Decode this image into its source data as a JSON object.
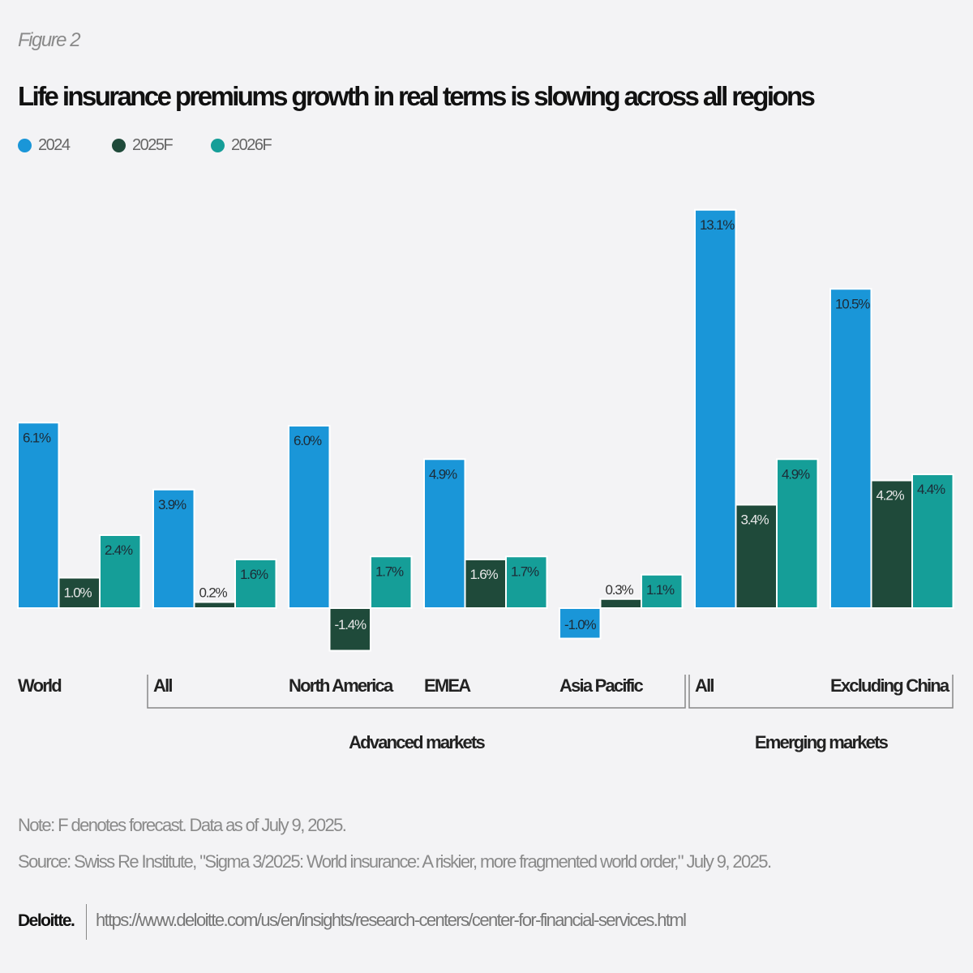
{
  "figure_label": "Figure 2",
  "chart_data": {
    "type": "bar",
    "title": "Life insurance premiums growth in real terms is slowing across all regions",
    "categories": [
      "World",
      "All",
      "North America",
      "EMEA",
      "Asia Pacific",
      "All",
      "Excluding China"
    ],
    "category_groups": [
      {
        "label": "Advanced markets",
        "categories": [
          "All",
          "North America",
          "EMEA",
          "Asia Pacific"
        ]
      },
      {
        "label": "Emerging markets",
        "categories": [
          "All",
          "Excluding China"
        ]
      }
    ],
    "unit": "%",
    "series": [
      {
        "name": "2024",
        "color": "#1a96d8",
        "values": [
          6.1,
          3.9,
          6.0,
          4.9,
          -1.0,
          13.1,
          10.5
        ]
      },
      {
        "name": "2025F",
        "color": "#1f4a3a",
        "values": [
          1.0,
          0.2,
          -1.4,
          1.6,
          0.3,
          3.4,
          4.2
        ]
      },
      {
        "name": "2026F",
        "color": "#159e98",
        "values": [
          2.4,
          1.6,
          1.7,
          1.7,
          1.1,
          4.9,
          4.4
        ]
      }
    ],
    "legend": "top-left",
    "grid": false,
    "data_labels": true
  },
  "footer": {
    "note": "Note: F denotes forecast. Data as of July 9, 2025.",
    "source": "Source: Swiss Re Institute, \"Sigma 3/2025: World insurance: A riskier, more fragmented world order,\" July 9, 2025.",
    "logo": "Deloitte.",
    "url": "https://www.deloitte.com/us/en/insights/research-centers/center-for-financial-services.html"
  }
}
